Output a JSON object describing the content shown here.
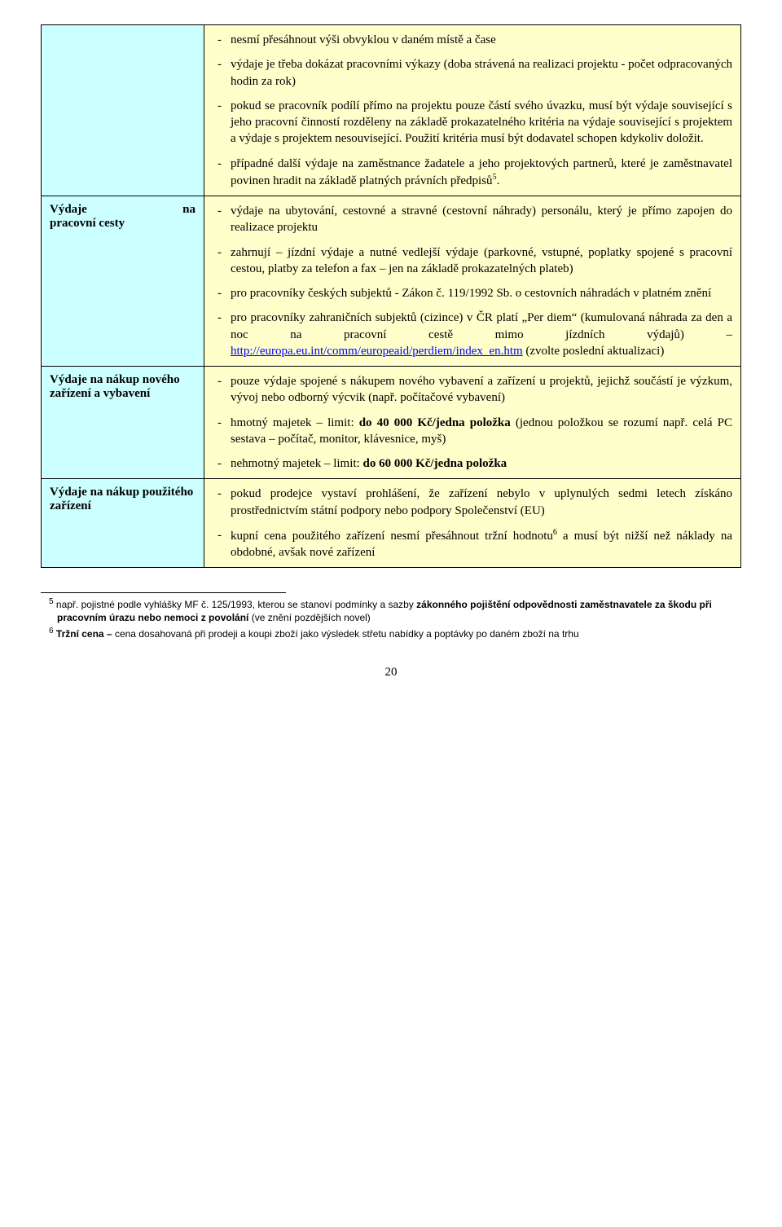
{
  "rows": [
    {
      "label": "",
      "items": [
        {
          "text": "nesmí přesáhnout výši obvyklou v daném místě a čase"
        },
        {
          "text": "výdaje je třeba dokázat pracovními výkazy (doba strávená na realizaci projektu - počet odpracovaných hodin za rok)"
        },
        {
          "text": "pokud se pracovník podílí přímo na projektu pouze částí svého úvazku, musí být výdaje související s jeho pracovní činností rozděleny na základě prokazatelného kritéria na výdaje související s projektem a výdaje s projektem nesouvisející. Použití kritéria musí být dodavatel schopen kdykoliv doložit."
        },
        {
          "text": "případné další výdaje na zaměstnance žadatele a jeho projektových partnerů, které je zaměstnavatel povinen hradit na základě platných právních předpisů",
          "sup": "5",
          "suffix": "."
        }
      ]
    },
    {
      "label": "Výdaje na pracovní cesty",
      "items": [
        {
          "text": "výdaje na ubytování, cestovné a stravné (cestovní náhrady) personálu, který je přímo zapojen do realizace projektu"
        },
        {
          "text": "zahrnují – jízdní výdaje a nutné vedlejší výdaje (parkovné, vstupné, poplatky spojené s pracovní cestou, platby za telefon a fax – jen na základě prokazatelných plateb)"
        },
        {
          "text": "pro pracovníky českých subjektů - Zákon č. 119/1992 Sb. o cestovních náhradách v platném znění"
        },
        {
          "text": "pro pracovníky zahraničních subjektů (cizince) v ČR platí „Per diem“ (kumulovaná náhrada za den a noc na pracovní cestě mimo jízdních výdajů) – ",
          "link_text": "http://europa.eu.int/comm/europeaid/perdiem/index_en.htm",
          "suffix": " (zvolte poslední aktualizaci)"
        }
      ]
    },
    {
      "label": "Výdaje na nákup nového zařízení a vybavení",
      "items": [
        {
          "text": "pouze výdaje spojené s nákupem nového vybavení a zařízení u projektů, jejichž součástí je výzkum, vývoj nebo odborný výcvik (např. počítačové vybavení)"
        },
        {
          "text": "hmotný majetek – limit: ",
          "bold": "do 40 000 Kč/jedna položka",
          "suffix": " (jednou položkou se rozumí např. celá PC sestava – počítač, monitor, klávesnice, myš)"
        },
        {
          "text": "nehmotný majetek – limit: ",
          "bold": "do 60 000 Kč/jedna položka"
        }
      ]
    },
    {
      "label": "Výdaje na nákup použitého zařízení",
      "items": [
        {
          "text": "pokud prodejce vystaví prohlášení, že zařízení nebylo v uplynulých sedmi letech získáno prostřednictvím státní podpory nebo podpory Společenství (EU)"
        },
        {
          "text": "kupní cena použitého zařízení nesmí přesáhnout tržní hodnotu",
          "sup": "6",
          "suffix": " a musí být nižší než náklady na obdobné, avšak nové zařízení"
        }
      ]
    }
  ],
  "footnotes": [
    {
      "num": "5",
      "pre": " např. pojistné podle vyhlášky MF č. 125/1993, kterou se stanoví podmínky a sazby ",
      "bold": "zákonného pojištění odpovědnosti zaměstnavatele za škodu při pracovním úrazu nebo nemoci z povolání",
      "post": " (ve znění pozdějších novel)"
    },
    {
      "num": "6",
      "pre": " ",
      "bold": "Tržní cena – ",
      "post": "cena dosahovaná při prodeji a koupi zboží jako výsledek střetu nabídky a poptávky po daném zboží na trhu"
    }
  ],
  "page_number": "20",
  "colors": {
    "left_bg": "#ccffff",
    "right_bg": "#ffffcc",
    "link": "#0000ff"
  }
}
